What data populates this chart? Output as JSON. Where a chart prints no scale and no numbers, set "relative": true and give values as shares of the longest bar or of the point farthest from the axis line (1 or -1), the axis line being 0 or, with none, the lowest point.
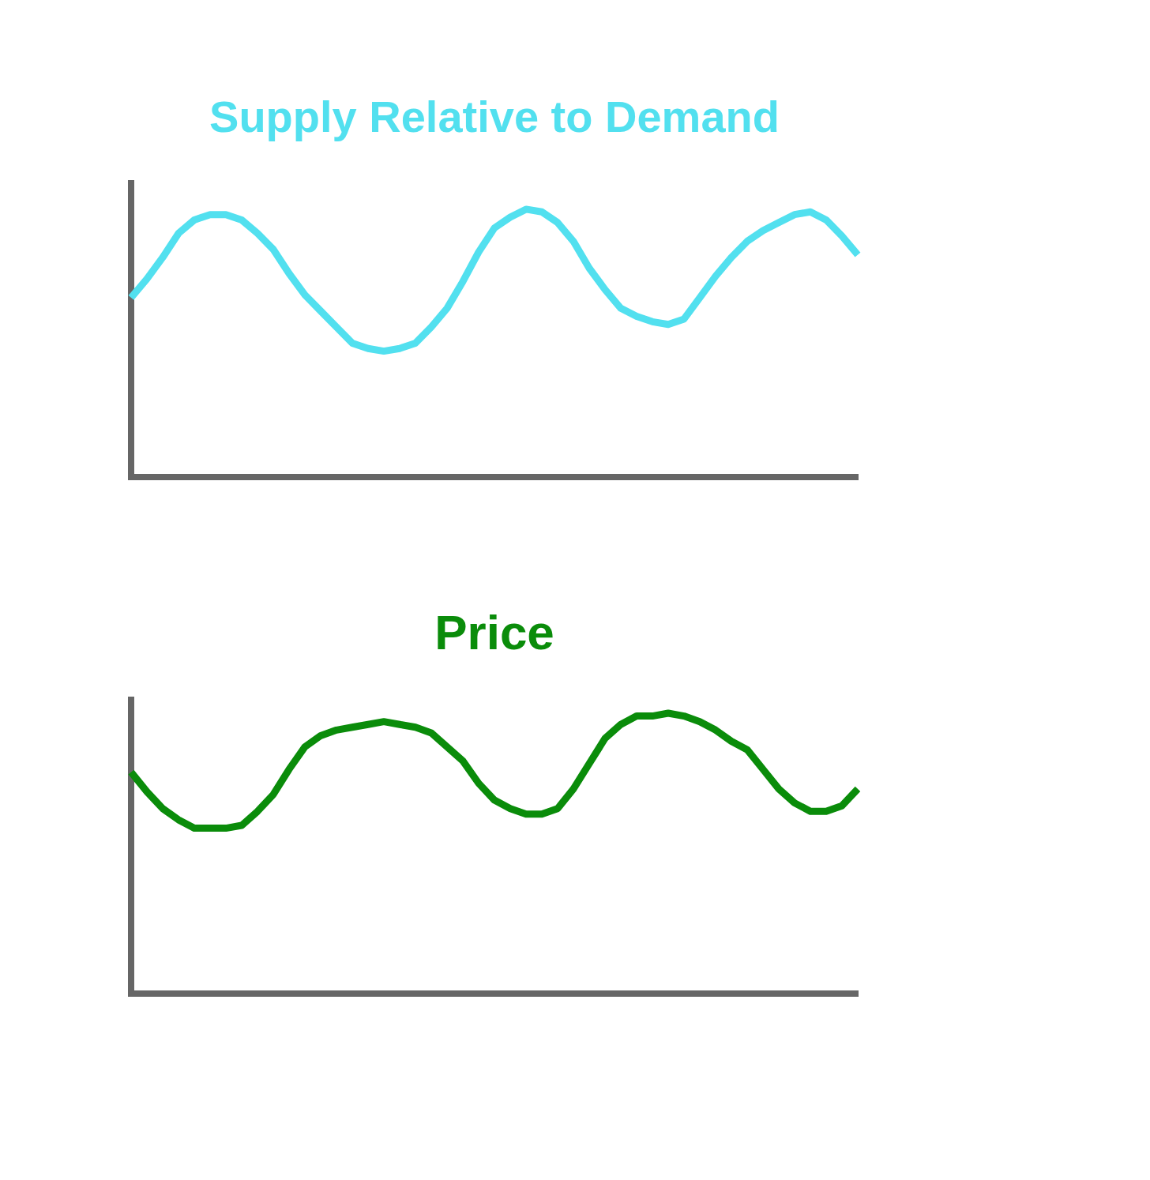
{
  "chart_data": [
    {
      "type": "line",
      "title": "Supply Relative to Demand",
      "relative": true,
      "categories": [
        null,
        null,
        null,
        null,
        null,
        null,
        null,
        null,
        null,
        null,
        null,
        null,
        null,
        null,
        null,
        null,
        null,
        null,
        null,
        null,
        null,
        null,
        null,
        null,
        null,
        null,
        null,
        null,
        null,
        null,
        null,
        null,
        null,
        null,
        null,
        null,
        null,
        null,
        null,
        null,
        null,
        null,
        null,
        null,
        null,
        null,
        null
      ],
      "series": [
        {
          "color": "#52e0ef",
          "values": [
            0.67,
            0.74,
            0.82,
            0.91,
            0.96,
            0.98,
            0.98,
            0.96,
            0.91,
            0.85,
            0.76,
            0.68,
            0.62,
            0.56,
            0.5,
            0.48,
            0.47,
            0.48,
            0.5,
            0.56,
            0.63,
            0.73,
            0.84,
            0.93,
            0.97,
            1,
            0.99,
            0.95,
            0.88,
            0.78,
            0.7,
            0.63,
            0.6,
            0.58,
            0.57,
            0.59,
            0.67,
            0.75,
            0.82,
            0.88,
            0.92,
            0.95,
            0.98,
            0.99,
            0.96,
            0.9,
            0.83
          ]
        }
      ]
    },
    {
      "type": "line",
      "title": "Price",
      "relative": true,
      "categories": [
        null,
        null,
        null,
        null,
        null,
        null,
        null,
        null,
        null,
        null,
        null,
        null,
        null,
        null,
        null,
        null,
        null,
        null,
        null,
        null,
        null,
        null,
        null,
        null,
        null,
        null,
        null,
        null,
        null,
        null,
        null,
        null,
        null,
        null,
        null,
        null,
        null,
        null,
        null,
        null,
        null,
        null,
        null,
        null,
        null,
        null,
        null
      ],
      "series": [
        {
          "color": "#0a8c0a",
          "values": [
            0.79,
            0.72,
            0.66,
            0.62,
            0.59,
            0.59,
            0.59,
            0.6,
            0.65,
            0.71,
            0.8,
            0.88,
            0.92,
            0.94,
            0.95,
            0.96,
            0.97,
            0.96,
            0.95,
            0.93,
            0.88,
            0.83,
            0.75,
            0.69,
            0.66,
            0.64,
            0.64,
            0.66,
            0.73,
            0.82,
            0.91,
            0.96,
            0.99,
            0.99,
            1,
            0.99,
            0.97,
            0.94,
            0.9,
            0.87,
            0.8,
            0.73,
            0.68,
            0.65,
            0.65,
            0.67,
            0.73
          ]
        }
      ]
    }
  ]
}
